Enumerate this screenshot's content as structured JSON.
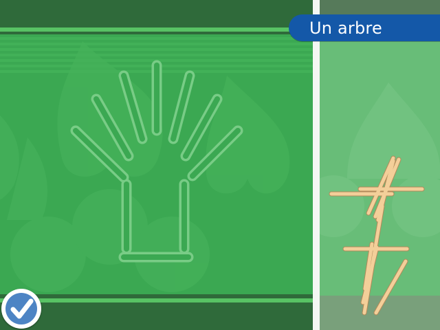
{
  "puzzle": {
    "title": "Un arbre"
  },
  "icons": {
    "check_button": "checkmark-icon"
  },
  "colors": {
    "board_green": "#3ba852",
    "tray_green": "#68bd78",
    "title_blue": "#1458a8",
    "stick_color": "#f3cf99",
    "check_blue": "#4d84c4"
  }
}
